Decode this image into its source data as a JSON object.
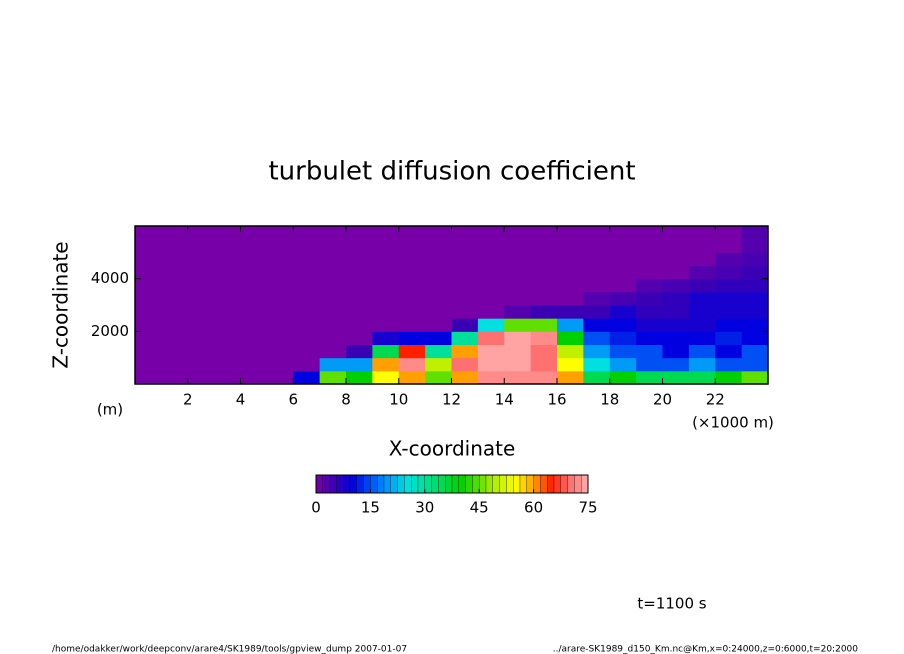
{
  "chart_data": {
    "type": "heatmap",
    "title": "turbulet diffusion coefficient",
    "x_label": "X-coordinate",
    "y_label": "Z-coordinate",
    "y_unit": "(m)",
    "x_unit": "(×1000 m)",
    "time_label": "t=1100 s",
    "footer_left": "/home/odakker/work/deepconv/arare4/SK1989/tools/gpview_dump  2007-01-07",
    "footer_right": "../arare-SK1989_d150_Km.nc@Km,x=0:24000,z=0:6000,t=20:2000",
    "xlim": [
      0,
      24
    ],
    "xticks": [
      2,
      4,
      6,
      8,
      10,
      12,
      14,
      16,
      18,
      20,
      22
    ],
    "ylim": [
      0,
      6000
    ],
    "yticks": [
      2000,
      4000
    ],
    "z": [
      [
        0,
        0,
        0,
        0,
        0,
        0,
        10,
        45,
        40,
        55,
        60,
        45,
        60,
        72,
        72,
        72,
        60,
        35,
        40,
        35,
        35,
        35,
        40,
        45
      ],
      [
        0,
        0,
        0,
        0,
        0,
        0,
        0,
        20,
        20,
        60,
        72,
        50,
        70,
        74,
        74,
        70,
        55,
        25,
        20,
        15,
        15,
        20,
        15,
        15
      ],
      [
        0,
        0,
        0,
        0,
        0,
        0,
        0,
        0,
        5,
        35,
        65,
        30,
        60,
        74,
        74,
        70,
        50,
        20,
        15,
        15,
        10,
        15,
        10,
        15
      ],
      [
        0,
        0,
        0,
        0,
        0,
        0,
        0,
        0,
        0,
        8,
        10,
        10,
        30,
        70,
        74,
        72,
        40,
        15,
        12,
        10,
        10,
        10,
        12,
        10
      ],
      [
        0,
        0,
        0,
        0,
        0,
        0,
        0,
        0,
        0,
        0,
        0,
        0,
        5,
        25,
        45,
        45,
        20,
        10,
        10,
        8,
        8,
        8,
        10,
        10
      ],
      [
        0,
        0,
        0,
        0,
        0,
        0,
        0,
        0,
        0,
        0,
        0,
        0,
        0,
        0,
        3,
        5,
        5,
        5,
        8,
        6,
        6,
        8,
        8,
        8
      ],
      [
        0,
        0,
        0,
        0,
        0,
        0,
        0,
        0,
        0,
        0,
        0,
        0,
        0,
        0,
        0,
        0,
        0,
        3,
        4,
        5,
        6,
        8,
        8,
        8
      ],
      [
        0,
        0,
        0,
        0,
        0,
        0,
        0,
        0,
        0,
        0,
        0,
        0,
        0,
        0,
        0,
        0,
        0,
        0,
        0,
        3,
        4,
        5,
        6,
        6
      ],
      [
        0,
        0,
        0,
        0,
        0,
        0,
        0,
        0,
        0,
        0,
        0,
        0,
        0,
        0,
        0,
        0,
        0,
        0,
        0,
        0,
        0,
        3,
        4,
        5
      ],
      [
        0,
        0,
        0,
        0,
        0,
        0,
        0,
        0,
        0,
        0,
        0,
        0,
        0,
        0,
        0,
        0,
        0,
        0,
        0,
        0,
        0,
        0,
        3,
        4
      ],
      [
        0,
        0,
        0,
        0,
        0,
        0,
        0,
        0,
        0,
        0,
        0,
        0,
        0,
        0,
        0,
        0,
        0,
        0,
        0,
        0,
        0,
        0,
        0,
        3
      ],
      [
        0,
        0,
        0,
        0,
        0,
        0,
        0,
        0,
        0,
        0,
        0,
        0,
        0,
        0,
        0,
        0,
        0,
        0,
        0,
        0,
        0,
        0,
        0,
        3
      ]
    ],
    "colorbar_lim": [
      0,
      75
    ],
    "colorbar_ticks": [
      0,
      15,
      30,
      45,
      60,
      75
    ],
    "colorscale": [
      {
        "value": 0,
        "color": "#7800a8"
      },
      {
        "value": 5,
        "color": "#3c00b4"
      },
      {
        "value": 10,
        "color": "#0000e0"
      },
      {
        "value": 18,
        "color": "#0080ff"
      },
      {
        "value": 25,
        "color": "#00e0e0"
      },
      {
        "value": 32,
        "color": "#00e080"
      },
      {
        "value": 40,
        "color": "#00d000"
      },
      {
        "value": 50,
        "color": "#c0f000"
      },
      {
        "value": 55,
        "color": "#ffff00"
      },
      {
        "value": 60,
        "color": "#ffa000"
      },
      {
        "value": 65,
        "color": "#ff2000"
      },
      {
        "value": 70,
        "color": "#ff7070"
      },
      {
        "value": 75,
        "color": "#ffb0b0"
      }
    ]
  }
}
